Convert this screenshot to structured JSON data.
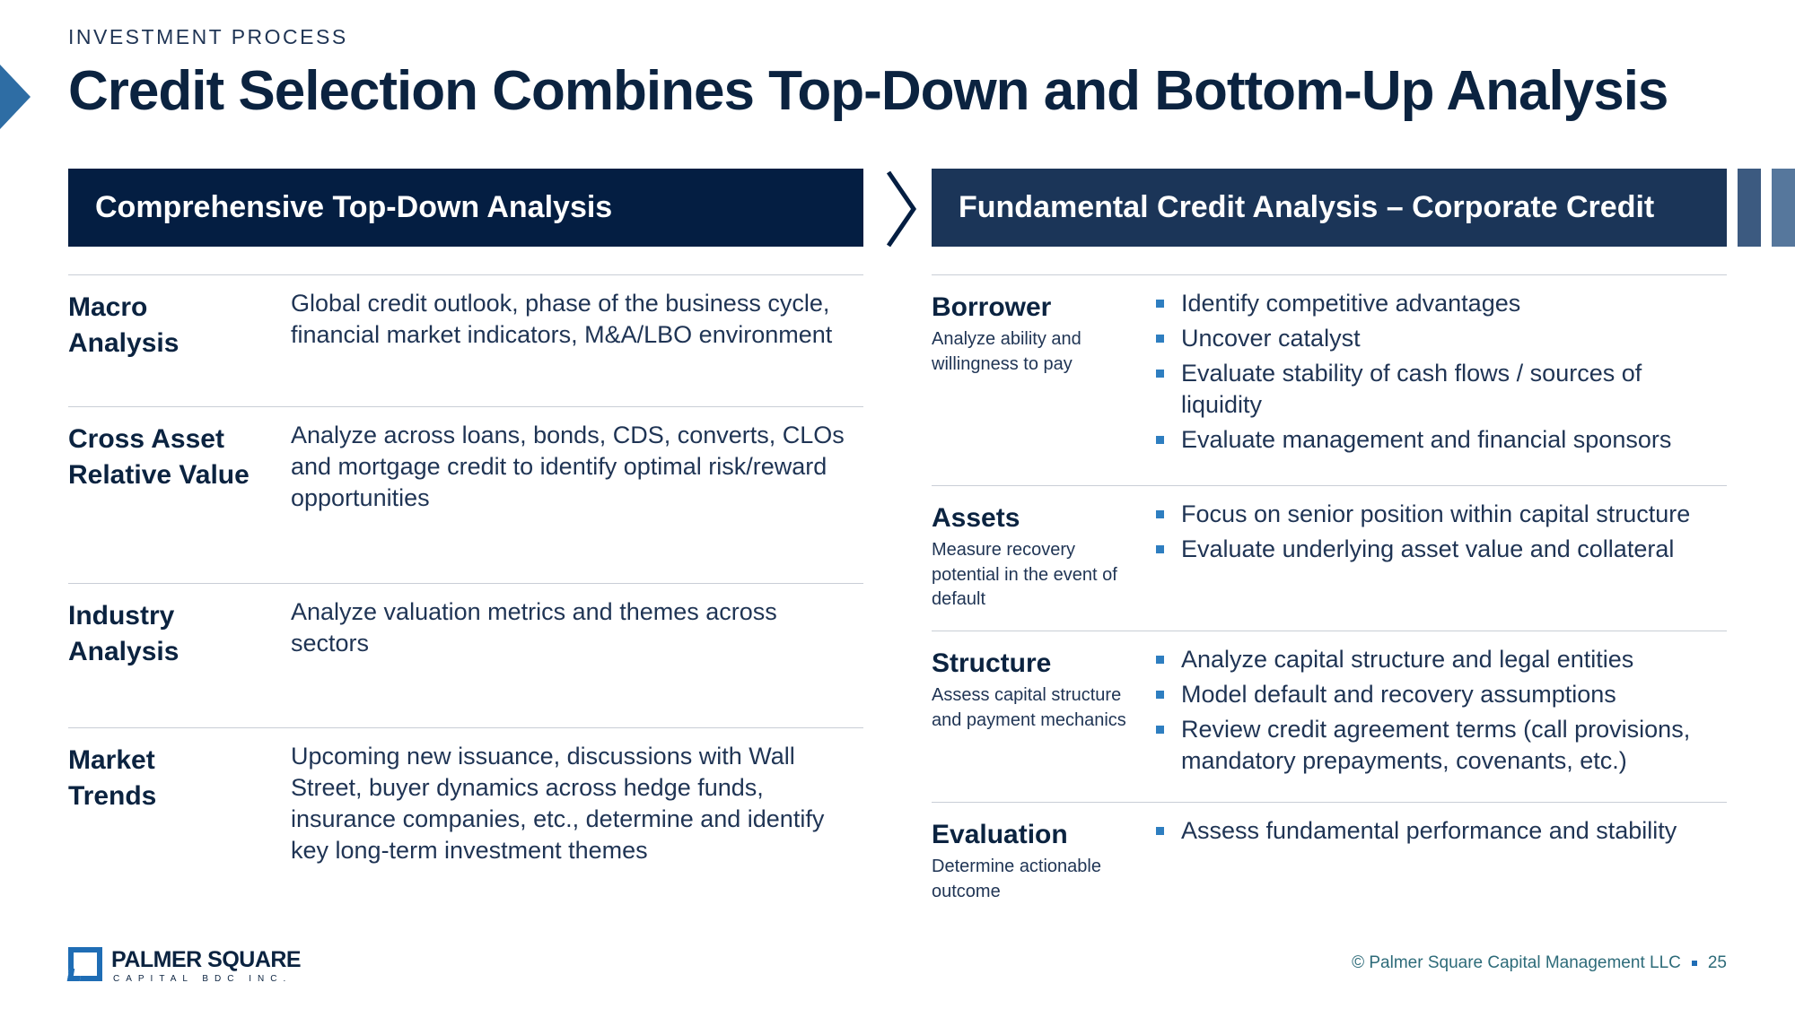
{
  "header": {
    "eyebrow": "INVESTMENT PROCESS",
    "title": "Credit Selection Combines Top-Down and Bottom-Up Analysis"
  },
  "left": {
    "heading": "Comprehensive Top-Down Analysis",
    "rows": [
      {
        "label_lines": [
          "Macro",
          "Analysis"
        ],
        "desc": "Global credit outlook, phase of the business cycle, financial market indicators, M&A/LBO environment"
      },
      {
        "label_lines": [
          "Cross Asset",
          "Relative Value"
        ],
        "desc": "Analyze across loans, bonds, CDS, converts, CLOs and mortgage credit to identify optimal risk/reward opportunities"
      },
      {
        "label_lines": [
          "Industry",
          "Analysis"
        ],
        "desc": "Analyze valuation metrics and themes across sectors"
      },
      {
        "label_lines": [
          "Market",
          "Trends"
        ],
        "desc": "Upcoming new issuance, discussions with Wall Street, buyer dynamics across hedge funds, insurance companies, etc., determine and identify key long-term investment themes"
      }
    ]
  },
  "right": {
    "heading": "Fundamental Credit Analysis – Corporate Credit",
    "rows": [
      {
        "name": "Borrower",
        "sub": "Analyze ability and willingness to pay",
        "bullets": [
          "Identify competitive advantages",
          "Uncover catalyst",
          "Evaluate stability of cash flows / sources of liquidity",
          "Evaluate management and financial sponsors"
        ]
      },
      {
        "name": "Assets",
        "sub": "Measure recovery potential in the event of default",
        "bullets": [
          "Focus on senior position within capital structure",
          "Evaluate underlying asset value and collateral"
        ]
      },
      {
        "name": "Structure",
        "sub": "Assess capital structure and payment mechanics",
        "bullets": [
          "Analyze capital structure and legal entities",
          "Model default and recovery assumptions",
          "Review credit agreement terms (call provisions, mandatory prepayments, covenants, etc.)"
        ]
      },
      {
        "name": "Evaluation",
        "sub": "Determine actionable outcome",
        "bullets": [
          "Assess fundamental performance and stability"
        ]
      }
    ]
  },
  "logo": {
    "name": "PALMER SQUARE",
    "sub": "CAPITAL BDC INC."
  },
  "footer": {
    "copyright": "© Palmer Square Capital Management LLC",
    "page": "25"
  },
  "colors": {
    "navy": "#041e42",
    "accent_blue": "#2e7ec0",
    "footer_teal": "#2d6b79"
  }
}
